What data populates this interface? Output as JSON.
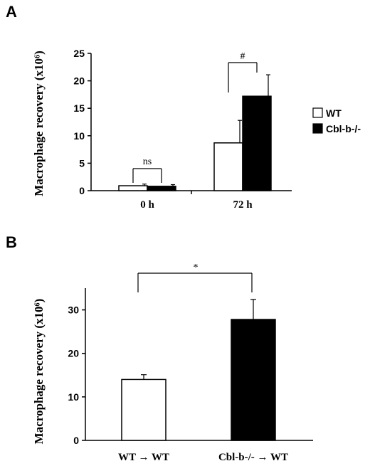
{
  "chart_data": [
    {
      "panel": "A",
      "type": "bar",
      "ylabel": "Macrophage recovery (x10⁶)",
      "ylim": [
        0,
        25
      ],
      "yticks": [
        0,
        5,
        10,
        15,
        20,
        25
      ],
      "categories": [
        "0 h",
        "72 h"
      ],
      "series": [
        {
          "name": "WT",
          "color": "#ffffff",
          "values": [
            0.9,
            8.7
          ],
          "errors": [
            0.3,
            4.1
          ]
        },
        {
          "name": "Cbl-b-/-",
          "color": "#000000",
          "values": [
            0.8,
            17.2
          ],
          "errors": [
            0.3,
            3.9
          ]
        }
      ],
      "annotations": [
        {
          "category": 0,
          "label": "ns"
        },
        {
          "category": 1,
          "label": "#"
        }
      ],
      "legend": {
        "position": "right"
      }
    },
    {
      "panel": "B",
      "type": "bar",
      "ylabel": "Macrophage recovery (x10⁶)",
      "ylim": [
        0,
        35
      ],
      "yticks": [
        0,
        10,
        20,
        30
      ],
      "categories": [
        "WT → WT",
        "Cbl-b-/- → WT"
      ],
      "values": [
        14.0,
        27.8
      ],
      "errors": [
        1.1,
        4.6
      ],
      "colors": [
        "#ffffff",
        "#000000"
      ],
      "annotations": [
        {
          "between": [
            0,
            1
          ],
          "label": "*"
        }
      ]
    }
  ]
}
